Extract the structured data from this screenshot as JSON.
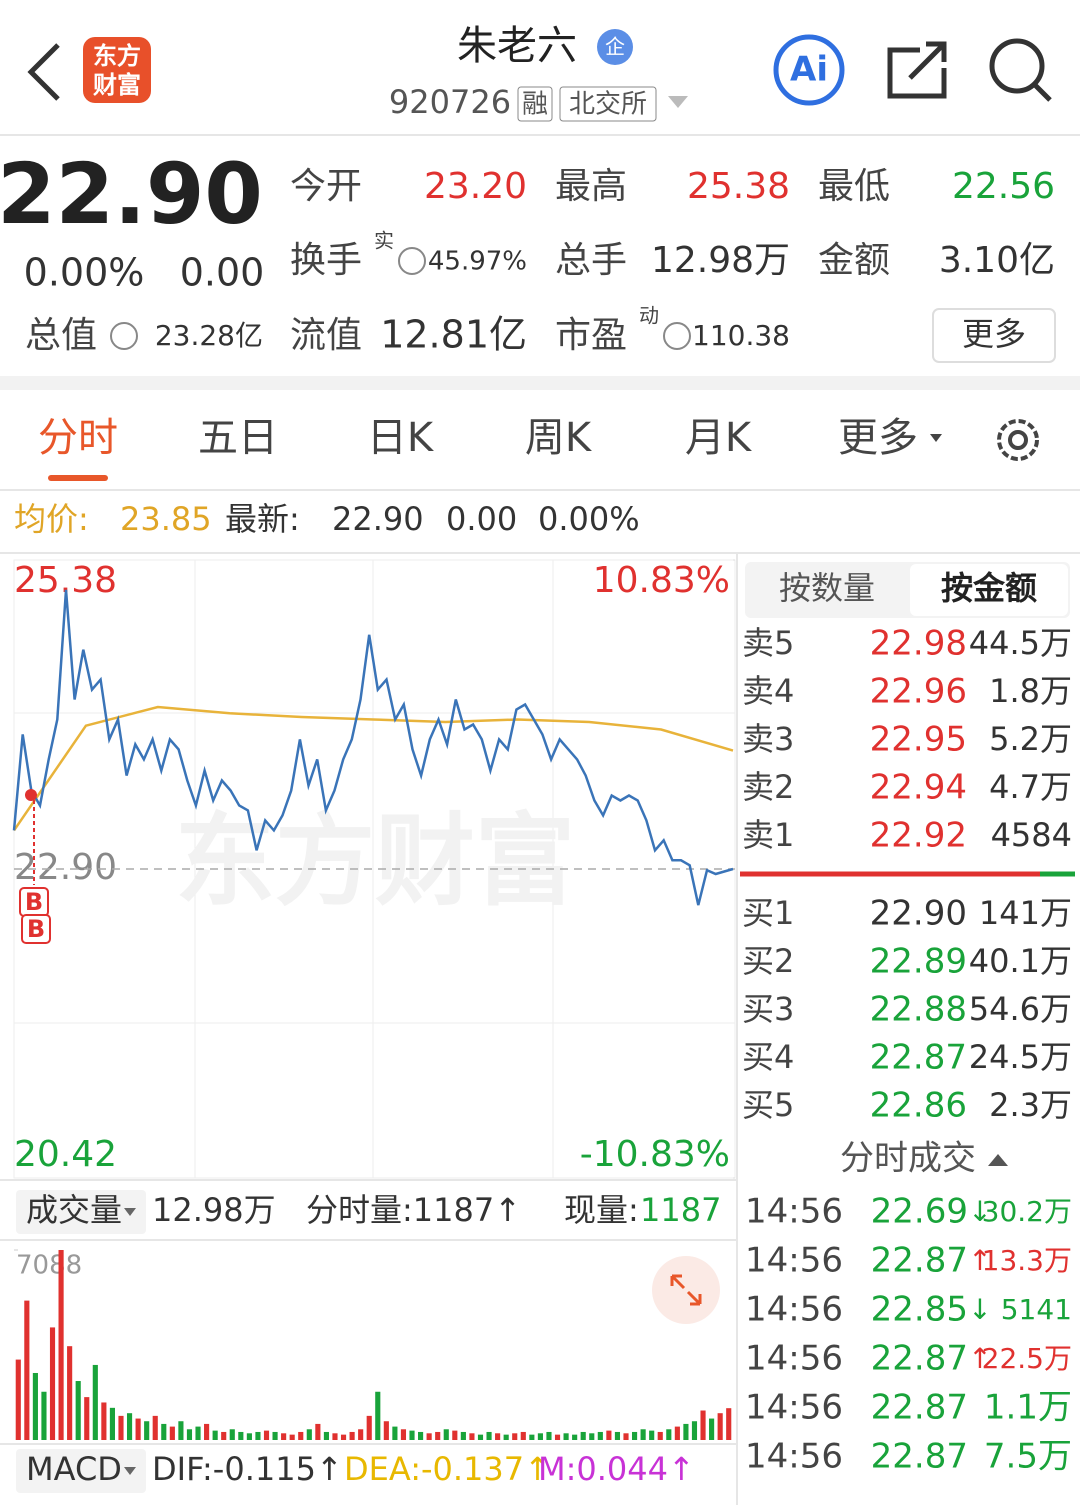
{
  "header": {
    "title": "朱老六",
    "badge": "企",
    "code": "920726",
    "tags": [
      "融",
      "北交所"
    ],
    "logo": [
      "东方",
      "财富"
    ],
    "ai": "Ai"
  },
  "quote": {
    "price": "22.90",
    "change_pct": "0.00%",
    "change": "0.00",
    "fields": [
      {
        "label": "今开",
        "value": "23.20"
      },
      {
        "label": "最高",
        "value": "25.38"
      },
      {
        "label": "最低",
        "value": "22.56"
      },
      {
        "label": "换手",
        "sup": "实",
        "value": "45.97%"
      },
      {
        "label": "总手",
        "value": "12.98万"
      },
      {
        "label": "金额",
        "value": "3.10亿"
      },
      {
        "label": "总值",
        "value": "23.28亿"
      },
      {
        "label": "流值",
        "value": "12.81亿"
      },
      {
        "label": "市盈",
        "sup": "动",
        "value": "110.38"
      }
    ],
    "more": "更多"
  },
  "tabs": [
    "分时",
    "五日",
    "日K",
    "周K",
    "月K",
    "更多"
  ],
  "info": {
    "avg_label": "均价:",
    "avg": "23.85",
    "latest_label": "最新:",
    "latest": "22.90",
    "change": "0.00",
    "change_pct": "0.00%"
  },
  "watermark": "东方财富",
  "markers": [
    "B",
    "B"
  ],
  "chart_data": [
    {
      "type": "line",
      "series": [
        {
          "color": "#3a74b8",
          "values": [
            23.21,
            23.98,
            23.53,
            23.41,
            23.78,
            24.1,
            25.14,
            24.26,
            24.66,
            24.34,
            24.42,
            23.94,
            24.1,
            23.65,
            23.9,
            23.78,
            23.94,
            23.69,
            23.94,
            23.86,
            23.61,
            23.41,
            23.69,
            23.45,
            23.61,
            23.53,
            23.41,
            23.37,
            23.05,
            23.29,
            23.21,
            23.33,
            23.53,
            23.94,
            23.57,
            23.78,
            23.37,
            23.53,
            23.78,
            23.94,
            24.26,
            24.78,
            24.34,
            24.42,
            24.1,
            24.22,
            23.86,
            23.65,
            23.94,
            24.1,
            23.9,
            24.26,
            24.02,
            24.06,
            23.94,
            23.69,
            23.94,
            23.86,
            24.18,
            24.22,
            24.1,
            23.98,
            23.78,
            23.94,
            23.86,
            23.78,
            23.65,
            23.45,
            23.33,
            23.49,
            23.45,
            23.49,
            23.45,
            23.29,
            23.05,
            23.13,
            22.97,
            22.97,
            22.93,
            22.61,
            22.89,
            22.86,
            22.88,
            22.9
          ]
        },
        {
          "color": "#e8b33a",
          "values": [
            23.21,
            24.05,
            24.2,
            24.15,
            24.12,
            24.1,
            24.08,
            24.1,
            24.08,
            24.02,
            23.85
          ]
        }
      ],
      "ylim": [
        20.42,
        25.38
      ],
      "yticks": [
        25.38,
        {
          "value": 22.9,
          "label": "22.90"
        },
        20.42
      ],
      "y2lim": [
        -10.83,
        10.83
      ],
      "y2ticks": [
        {
          "value": 10.83,
          "label": "10.83%"
        },
        {
          "value": -10.83,
          "label": "-10.83%"
        }
      ]
    },
    {
      "type": "bar",
      "values": [
        3000,
        5200,
        2500,
        1800,
        4200,
        7088,
        3500,
        2200,
        1600,
        2800,
        1400,
        1200,
        900,
        1000,
        800,
        700,
        900,
        600,
        500,
        700,
        400,
        500,
        600,
        350,
        300,
        400,
        300,
        250,
        300,
        350,
        300,
        250,
        200,
        300,
        400,
        600,
        300,
        250,
        200,
        300,
        400,
        900,
        1800,
        700,
        500,
        400,
        350,
        300,
        250,
        300,
        400,
        350,
        300,
        250,
        200,
        300,
        250,
        200,
        250,
        300,
        200,
        250,
        300,
        200,
        250,
        200,
        300,
        250,
        300,
        350,
        300,
        250,
        300,
        400,
        350,
        300,
        400,
        500,
        600,
        700,
        1100,
        800,
        1000,
        1187
      ],
      "ylim": [
        0,
        7088
      ],
      "yticks": [
        7088
      ],
      "up_color": "#e0312f",
      "down_color": "#19a33a"
    }
  ],
  "order_book": {
    "tabs": [
      "按数量",
      "按金额"
    ],
    "asks": [
      [
        "卖5",
        "22.98",
        "44.5万"
      ],
      [
        "卖4",
        "22.96",
        "1.8万"
      ],
      [
        "卖3",
        "22.95",
        "5.2万"
      ],
      [
        "卖2",
        "22.94",
        "4.7万"
      ],
      [
        "卖1",
        "22.92",
        "4584"
      ]
    ],
    "bids": [
      [
        "买1",
        "22.90",
        "141万"
      ],
      [
        "买2",
        "22.89",
        "40.1万"
      ],
      [
        "买3",
        "22.88",
        "54.6万"
      ],
      [
        "买4",
        "22.87",
        "24.5万"
      ],
      [
        "买5",
        "22.86",
        "2.3万"
      ]
    ]
  },
  "trades": {
    "title": "分时成交",
    "rows": [
      {
        "time": "14:56",
        "price": "22.69",
        "dir": "↓",
        "vol": "30.2万"
      },
      {
        "time": "14:56",
        "price": "22.87",
        "dir": "↑",
        "vol": "13.3万"
      },
      {
        "time": "14:56",
        "price": "22.85",
        "dir": "↓",
        "vol": "5141"
      },
      {
        "time": "14:56",
        "price": "22.87",
        "dir": "↑",
        "vol": "22.5万"
      },
      {
        "time": "14:56",
        "price": "22.87",
        "vol": "1.1万"
      },
      {
        "time": "14:56",
        "price": "22.87",
        "vol": "7.5万"
      }
    ]
  },
  "volume_bar": {
    "label": "成交量",
    "total": "12.98万",
    "tick": "分时量:1187↑",
    "now_label": "现量:",
    "now": "1187"
  },
  "macd": {
    "label": "MACD",
    "dif": "DIF:-0.115↑",
    "dea": "DEA:-0.137↑",
    "m": "M:0.044↑"
  }
}
